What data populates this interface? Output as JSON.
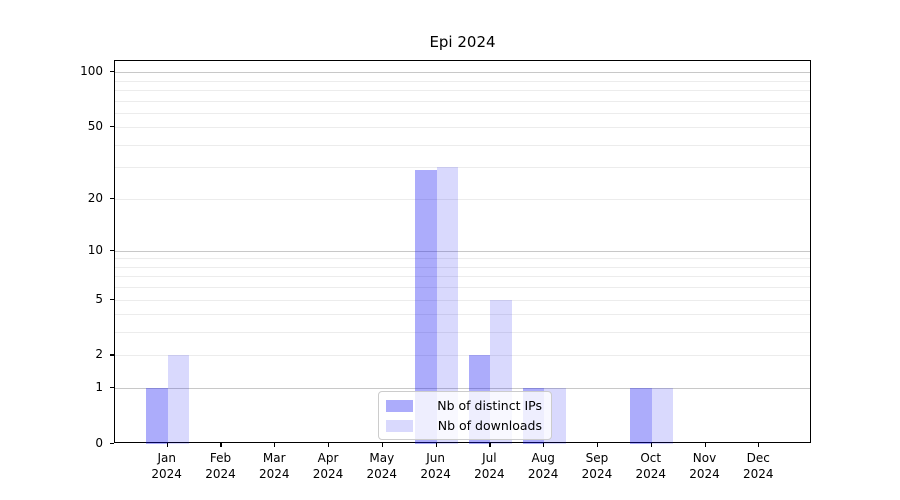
{
  "chart_data": {
    "type": "bar",
    "title": "Epi 2024",
    "categories": [
      "Jan",
      "Feb",
      "Mar",
      "Apr",
      "May",
      "Jun",
      "Jul",
      "Aug",
      "Sep",
      "Oct",
      "Nov",
      "Dec"
    ],
    "year": "2024",
    "series": [
      {
        "name": "Nb of distinct IPs",
        "color": "rgba(13,13,242,0.34)",
        "values": [
          1,
          0,
          0,
          0,
          0,
          29,
          2,
          1,
          0,
          1,
          0,
          0
        ]
      },
      {
        "name": "Nb of downloads",
        "color": "rgba(13,13,242,0.155)",
        "values": [
          2,
          0,
          0,
          0,
          0,
          30,
          5,
          1,
          0,
          1,
          0,
          0
        ]
      }
    ],
    "yscale": "log1p",
    "ylim": [
      0,
      115
    ],
    "yticks": [
      0,
      1,
      2,
      5,
      10,
      20,
      50,
      100
    ],
    "minor_gridlines": [
      2,
      3,
      4,
      5,
      6,
      7,
      8,
      9,
      20,
      30,
      40,
      50,
      60,
      70,
      80,
      90
    ],
    "major_gridlines": [
      1,
      10,
      100
    ],
    "grid": "horizontal",
    "legend_position": "lower center",
    "colors": {
      "spine": "#000000",
      "major_grid": "#c8c8c8",
      "minor_grid": "#ececec",
      "background": "#ffffff"
    }
  }
}
